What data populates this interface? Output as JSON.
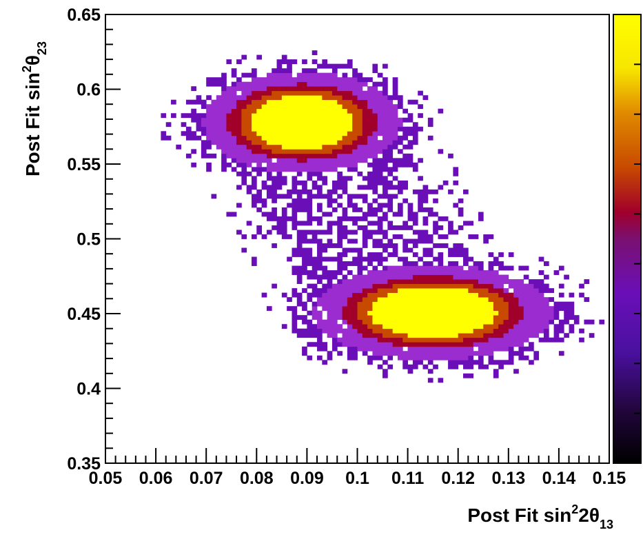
{
  "chart_data": {
    "type": "heatmap",
    "title": "",
    "xlabel": {
      "parts": [
        {
          "t": "Post Fit sin"
        },
        {
          "t": "2",
          "s": "sup"
        },
        {
          "t": "2θ"
        },
        {
          "t": "13",
          "s": "sub"
        }
      ]
    },
    "ylabel": {
      "parts": [
        {
          "t": "Post Fit sin"
        },
        {
          "t": "2",
          "s": "sup"
        },
        {
          "t": "θ"
        },
        {
          "t": "23",
          "s": "sub"
        }
      ]
    },
    "xlim": [
      0.05,
      0.15
    ],
    "ylim": [
      0.35,
      0.65
    ],
    "x_ticks": [
      "0.05",
      "0.06",
      "0.07",
      "0.08",
      "0.09",
      "0.1",
      "0.11",
      "0.12",
      "0.13",
      "0.14",
      "0.15"
    ],
    "y_ticks": [
      "0.35",
      "0.4",
      "0.45",
      "0.5",
      "0.55",
      "0.6",
      "0.65"
    ],
    "bins": {
      "nx": 100,
      "ny": 100
    },
    "colormap": [
      "#000000",
      "#3a0b63",
      "#6a0fb8",
      "#9a2cd0",
      "#a0002a",
      "#c84a00",
      "#e08a00",
      "#f7e600",
      "#ffff00"
    ],
    "clusters": [
      {
        "label": "upper",
        "center": [
          0.089,
          0.578
        ],
        "sigma": [
          0.0095,
          0.0165
        ],
        "core_level": 0.55,
        "ring_level": 0.3
      },
      {
        "label": "lower",
        "center": [
          0.115,
          0.451
        ],
        "sigma": [
          0.0115,
          0.0155
        ],
        "core_level": 0.55,
        "ring_level": 0.3
      }
    ],
    "bridge": {
      "from": [
        0.095,
        0.54
      ],
      "to": [
        0.105,
        0.48
      ],
      "density": 0.12
    },
    "colorbar": {
      "shown": true,
      "ticks": 9
    },
    "grid": false,
    "legend": "none"
  }
}
